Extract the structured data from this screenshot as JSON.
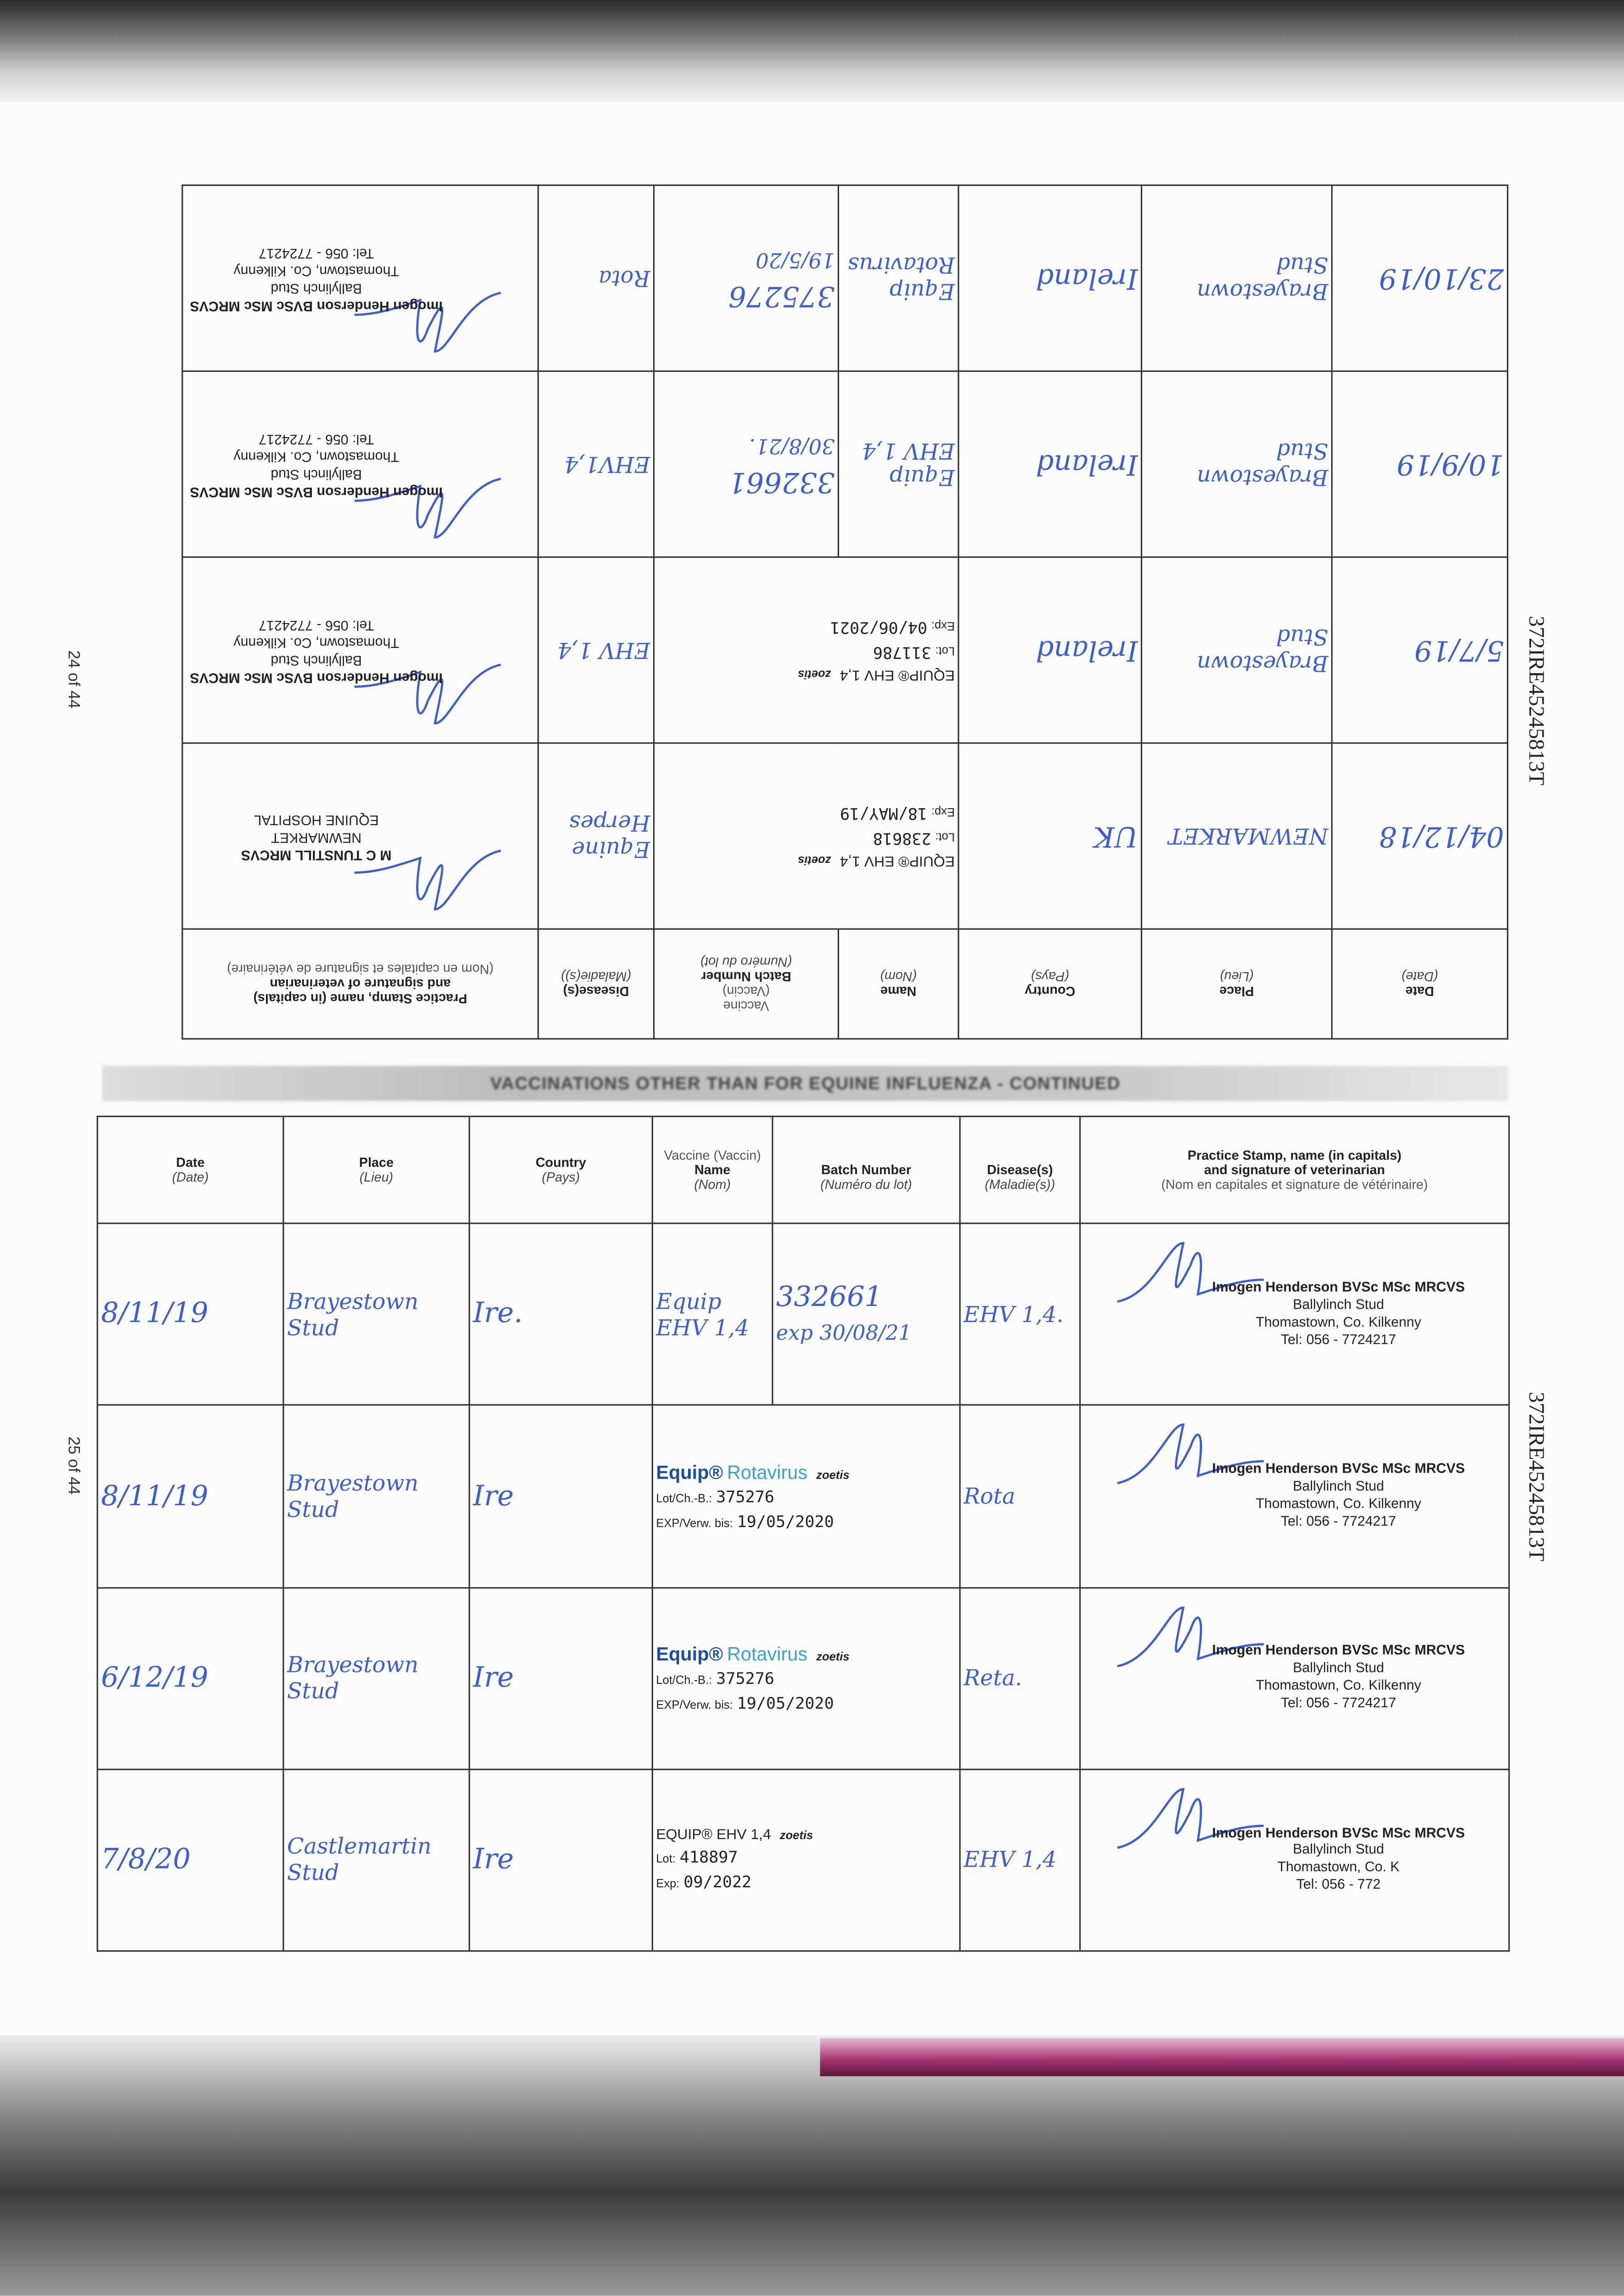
{
  "page_numbers": {
    "upper": "24 of 44",
    "lower": "25 of 44"
  },
  "passport_number": "372IRE45245813T",
  "section_title": "VACCINATIONS OTHER THAN FOR EQUINE INFLUENZA - CONTINUED",
  "headers": {
    "date": "Date",
    "date_fr": "(Date)",
    "place": "Place",
    "place_fr": "(Lieu)",
    "country": "Country",
    "country_fr": "(Pays)",
    "vaccine": "Vaccine",
    "vaccine_fr": "(Vaccin)",
    "name": "Name",
    "name_fr": "(Nom)",
    "batch": "Batch Number",
    "batch_fr": "(Numéro du lot)",
    "disease": "Disease(s)",
    "disease_fr": "(Maladie(s))",
    "stamp": "Practice Stamp, name (in capitals)",
    "stamp2": "and signature of veterinarian",
    "stamp_fr": "(Nom en capitales et signature de vétérinaire)"
  },
  "upper_rows": [
    {
      "date": "04/12/18",
      "place": "NEWMARKET",
      "country": "UK",
      "label": {
        "product": "EQUIP® EHV 1,4",
        "maker": "zoetis",
        "lot_label": "Lot:",
        "lot": "238618",
        "exp_label": "Exp:",
        "exp": "18/MAY/19"
      },
      "disease": "Equine Herpes",
      "stamp": [
        "M C TUNSTILL MRCVS",
        "NEWMARKET",
        "EQUINE HOSPITAL"
      ]
    },
    {
      "date": "5/7/19",
      "place": "Brayestown Stud",
      "country": "Ireland",
      "label": {
        "product": "EQUIP® EHV 1,4",
        "maker": "zoetis",
        "lot_label": "Lot:",
        "lot": "311786",
        "exp_label": "Exp:",
        "exp": "04/06/2021"
      },
      "disease": "EHV 1,4",
      "stamp": [
        "Imogen Henderson BVSc MSc MRCVS",
        "Ballylinch Stud",
        "Thomastown, Co. Kilkenny",
        "Tel: 056 - 7724217"
      ]
    },
    {
      "date": "10/9/19",
      "place": "Brayestown Stud",
      "country": "Ireland",
      "name": "Equip EHV 1,4",
      "batch": "332661",
      "batch_exp": "30/8/21.",
      "disease": "EHV1,4",
      "stamp": [
        "Imogen Henderson BVSc MSc MRCVS",
        "Ballylinch Stud",
        "Thomastown, Co. Kilkenny",
        "Tel: 056 - 7724217"
      ]
    },
    {
      "date": "23/10/19",
      "place": "Brayestown Stud",
      "country": "Ireland",
      "name": "Equip Rotavirus",
      "batch": "375276",
      "batch_exp": "19/5/20",
      "disease": "Rota",
      "stamp": [
        "Imogen Henderson BVSc MSc MRCVS",
        "Ballylinch Stud",
        "Thomastown, Co. Kilkenny",
        "Tel: 056 - 7724217"
      ]
    }
  ],
  "lower_rows": [
    {
      "date": "8/11/19",
      "place": "Brayestown Stud",
      "country": "Ire.",
      "name": "Equip EHV 1,4",
      "batch": "332661",
      "batch_exp": "exp 30/08/21",
      "disease": "EHV 1,4.",
      "stamp": [
        "Imogen Henderson BVSc MSc MRCVS",
        "Ballylinch Stud",
        "Thomastown, Co. Kilkenny",
        "Tel: 056 - 7724217"
      ]
    },
    {
      "date": "8/11/19",
      "place": "Brayestown Stud",
      "country": "Ire",
      "label": {
        "brand": "Equip®",
        "product": "Rotavirus",
        "maker": "zoetis",
        "lot_label": "Lot/Ch.-B.:",
        "lot": "375276",
        "exp_label": "EXP/Verw. bis:",
        "exp": "19/05/2020"
      },
      "disease": "Rota",
      "stamp": [
        "Imogen Henderson BVSc MSc MRCVS",
        "Ballylinch Stud",
        "Thomastown, Co. Kilkenny",
        "Tel: 056 - 7724217"
      ]
    },
    {
      "date": "6/12/19",
      "place": "Brayestown Stud",
      "country": "Ire",
      "label": {
        "brand": "Equip®",
        "product": "Rotavirus",
        "maker": "zoetis",
        "lot_label": "Lot/Ch.-B.:",
        "lot": "375276",
        "exp_label": "EXP/Verw. bis:",
        "exp": "19/05/2020"
      },
      "disease": "Reta.",
      "stamp": [
        "Imogen Henderson BVSc MSc MRCVS",
        "Ballylinch Stud",
        "Thomastown, Co. Kilkenny",
        "Tel: 056 - 7724217"
      ]
    },
    {
      "date": "7/8/20",
      "place": "Castlemartin Stud",
      "country": "Ire",
      "label": {
        "product": "EQUIP® EHV 1,4",
        "maker": "zoetis",
        "lot_label": "Lot:",
        "lot": "418897",
        "exp_label": "Exp:",
        "exp": "09/2022"
      },
      "disease": "EHV 1,4",
      "stamp": [
        "Imogen Henderson BVSc MSc MRCVS",
        "Ballylinch Stud",
        "Thomastown, Co. K",
        "Tel: 056 - 772"
      ]
    }
  ],
  "colors": {
    "ink": "#3b5fd0",
    "brand_blue": "#1a4fa0",
    "rotavirus": "#3aa0d8",
    "binding": "#a0306b"
  }
}
